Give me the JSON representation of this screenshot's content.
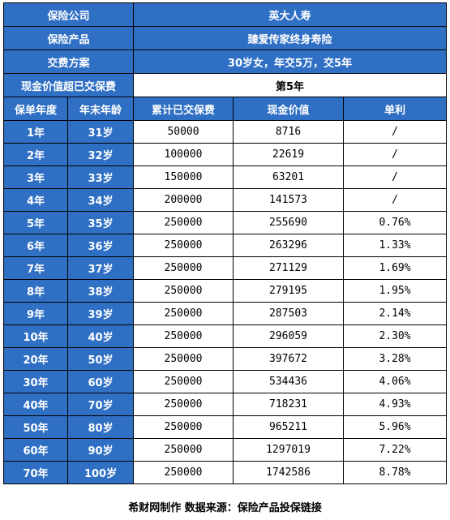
{
  "info": {
    "company_label": "保险公司",
    "company_value": "英大人寿",
    "product_label": "保险产品",
    "product_value": "臻爱传家终身寿险",
    "plan_label": "交费方案",
    "plan_value": "30岁女，年交5万，交5年",
    "exceed_label": "现金价值超已交保费",
    "exceed_value": "第5年"
  },
  "columns": [
    "保单年度",
    "年末年龄",
    "累计已交保费",
    "现金价值",
    "单利"
  ],
  "rows": [
    [
      "1年",
      "31岁",
      "50000",
      "8716",
      "/"
    ],
    [
      "2年",
      "32岁",
      "100000",
      "22619",
      "/"
    ],
    [
      "3年",
      "33岁",
      "150000",
      "63201",
      "/"
    ],
    [
      "4年",
      "34岁",
      "200000",
      "141573",
      "/"
    ],
    [
      "5年",
      "35岁",
      "250000",
      "255690",
      "0.76%"
    ],
    [
      "6年",
      "36岁",
      "250000",
      "263296",
      "1.33%"
    ],
    [
      "7年",
      "37岁",
      "250000",
      "271129",
      "1.69%"
    ],
    [
      "8年",
      "38岁",
      "250000",
      "279195",
      "1.95%"
    ],
    [
      "9年",
      "39岁",
      "250000",
      "287503",
      "2.14%"
    ],
    [
      "10年",
      "40岁",
      "250000",
      "296059",
      "2.30%"
    ],
    [
      "20年",
      "50岁",
      "250000",
      "397672",
      "3.28%"
    ],
    [
      "30年",
      "60岁",
      "250000",
      "534436",
      "4.06%"
    ],
    [
      "40年",
      "70岁",
      "250000",
      "718231",
      "4.93%"
    ],
    [
      "50年",
      "80岁",
      "250000",
      "965211",
      "5.96%"
    ],
    [
      "60年",
      "90岁",
      "250000",
      "1297019",
      "7.22%"
    ],
    [
      "70年",
      "100岁",
      "250000",
      "1742586",
      "8.78%"
    ]
  ],
  "footer": "希财网制作   数据来源：保险产品投保链接",
  "colors": {
    "header_blue": "#2f6fc4",
    "border": "#000000",
    "text_white": "#ffffff"
  }
}
